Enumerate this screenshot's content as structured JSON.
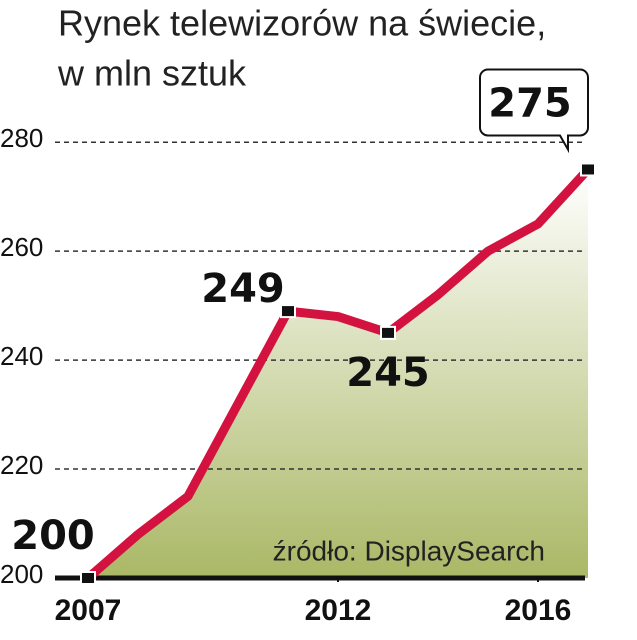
{
  "chart_data": {
    "type": "line",
    "title": "Rynek telewizorów na świecie,",
    "subtitle": "w mln sztuk",
    "source": "źródło: DisplaySearch",
    "x": [
      2007,
      2008,
      2009,
      2010,
      2011,
      2012,
      2013,
      2014,
      2015,
      2016,
      2017
    ],
    "series": [
      {
        "name": "Rynek telewizorów",
        "color": "#d3123f",
        "values": [
          200,
          208,
          215,
          232,
          249,
          248,
          245,
          252,
          260,
          265,
          275
        ],
        "value_labels": [
          "200",
          null,
          null,
          null,
          "249",
          null,
          "245",
          null,
          null,
          null,
          "275"
        ]
      }
    ],
    "xlim": [
      2007,
      2017
    ],
    "xticks": [
      2007,
      2012,
      2016
    ],
    "ylim": [
      200,
      285
    ],
    "yticks": [
      200,
      220,
      240,
      260,
      280
    ],
    "grid": true
  }
}
